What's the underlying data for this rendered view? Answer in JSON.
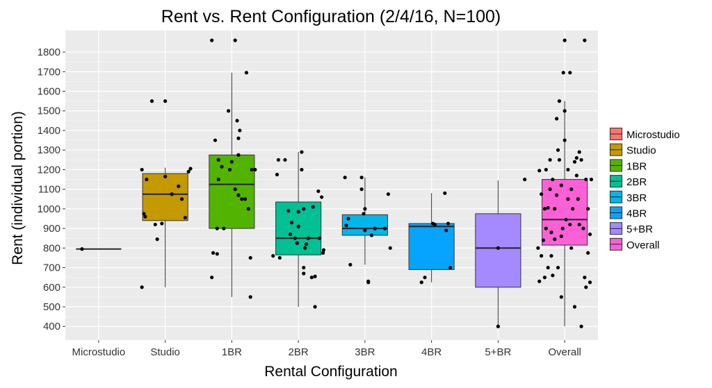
{
  "chart_data": {
    "type": "box",
    "title": "Rent vs. Rent Configuration (2/4/16, N=100)",
    "xlabel": "Rental Configuration",
    "ylabel": "Rent (individual portion)",
    "categories": [
      "Microstudio",
      "Studio",
      "1BR",
      "2BR",
      "3BR",
      "4BR",
      "5+BR",
      "Overall"
    ],
    "colors": [
      "#F8766D",
      "#C49A00",
      "#53B400",
      "#00C094",
      "#00B6EB",
      "#06A4FF",
      "#A58AFF",
      "#FB61D7"
    ],
    "yticks": [
      400,
      500,
      600,
      700,
      800,
      900,
      1000,
      1100,
      1200,
      1300,
      1400,
      1500,
      1600,
      1700,
      1800
    ],
    "ylim": [
      330,
      1910
    ],
    "legend_position": "right",
    "grid": true,
    "boxes": [
      {
        "name": "Microstudio",
        "min": 795,
        "q1": 795,
        "median": 795,
        "q3": 795,
        "max": 795
      },
      {
        "name": "Studio",
        "min": 600,
        "q1": 940,
        "median": 1075,
        "q3": 1180,
        "max": 1210
      },
      {
        "name": "1BR",
        "min": 550,
        "q1": 900,
        "median": 1125,
        "q3": 1275,
        "max": 1695
      },
      {
        "name": "2BR",
        "min": 500,
        "q1": 765,
        "median": 850,
        "q3": 1035,
        "max": 1290
      },
      {
        "name": "3BR",
        "min": 715,
        "q1": 865,
        "median": 900,
        "q3": 970,
        "max": 1160
      },
      {
        "name": "4BR",
        "min": 625,
        "q1": 690,
        "median": 910,
        "q3": 925,
        "max": 1080
      },
      {
        "name": "5+BR",
        "min": 400,
        "q1": 600,
        "median": 800,
        "q3": 975,
        "max": 1145
      },
      {
        "name": "Overall",
        "min": 400,
        "q1": 815,
        "median": 945,
        "q3": 1150,
        "max": 1550
      }
    ],
    "points": [
      {
        "cat": 0,
        "dx": -0.25,
        "y": 795
      },
      {
        "cat": 1,
        "dx": -0.35,
        "y": 600
      },
      {
        "cat": 1,
        "dx": -0.3,
        "y": 960
      },
      {
        "cat": 1,
        "dx": -0.35,
        "y": 1200
      },
      {
        "cat": 1,
        "dx": -0.2,
        "y": 1550
      },
      {
        "cat": 1,
        "dx": -0.15,
        "y": 920
      },
      {
        "cat": 1,
        "dx": -0.12,
        "y": 845
      },
      {
        "cat": 1,
        "dx": -0.05,
        "y": 925
      },
      {
        "cat": 1,
        "dx": 0.0,
        "y": 1550
      },
      {
        "cat": 1,
        "dx": 0.0,
        "y": 1165
      },
      {
        "cat": 1,
        "dx": 0.1,
        "y": 1075
      },
      {
        "cat": 1,
        "dx": 0.2,
        "y": 1115
      },
      {
        "cat": 1,
        "dx": 0.25,
        "y": 1050
      },
      {
        "cat": 1,
        "dx": 0.3,
        "y": 955
      },
      {
        "cat": 1,
        "dx": 0.35,
        "y": 1190
      },
      {
        "cat": 1,
        "dx": 0.38,
        "y": 1205
      },
      {
        "cat": 1,
        "dx": -0.32,
        "y": 975
      },
      {
        "cat": 1,
        "dx": -0.28,
        "y": 1150
      },
      {
        "cat": 1,
        "dx": 0.1,
        "y": 1075
      },
      {
        "cat": 2,
        "dx": -0.3,
        "y": 1860
      },
      {
        "cat": 2,
        "dx": -0.3,
        "y": 650
      },
      {
        "cat": 2,
        "dx": -0.28,
        "y": 775
      },
      {
        "cat": 2,
        "dx": -0.22,
        "y": 770
      },
      {
        "cat": 2,
        "dx": -0.25,
        "y": 1350
      },
      {
        "cat": 2,
        "dx": -0.2,
        "y": 1250
      },
      {
        "cat": 2,
        "dx": -0.15,
        "y": 1215
      },
      {
        "cat": 2,
        "dx": -0.22,
        "y": 900
      },
      {
        "cat": 2,
        "dx": -0.12,
        "y": 900
      },
      {
        "cat": 2,
        "dx": -0.2,
        "y": 1150
      },
      {
        "cat": 2,
        "dx": -0.05,
        "y": 1500
      },
      {
        "cat": 2,
        "dx": -0.03,
        "y": 1200
      },
      {
        "cat": 2,
        "dx": 0.0,
        "y": 1240
      },
      {
        "cat": 2,
        "dx": 0.05,
        "y": 1100
      },
      {
        "cat": 2,
        "dx": 0.05,
        "y": 1860
      },
      {
        "cat": 2,
        "dx": 0.08,
        "y": 1450
      },
      {
        "cat": 2,
        "dx": 0.1,
        "y": 1360
      },
      {
        "cat": 2,
        "dx": 0.12,
        "y": 1400
      },
      {
        "cat": 2,
        "dx": 0.1,
        "y": 1275
      },
      {
        "cat": 2,
        "dx": 0.1,
        "y": 1070
      },
      {
        "cat": 2,
        "dx": 0.15,
        "y": 1050
      },
      {
        "cat": 2,
        "dx": 0.2,
        "y": 1050
      },
      {
        "cat": 2,
        "dx": 0.22,
        "y": 1695
      },
      {
        "cat": 2,
        "dx": 0.25,
        "y": 1000
      },
      {
        "cat": 2,
        "dx": 0.3,
        "y": 1200
      },
      {
        "cat": 2,
        "dx": 0.35,
        "y": 1200
      },
      {
        "cat": 2,
        "dx": 0.28,
        "y": 750
      },
      {
        "cat": 2,
        "dx": 0.28,
        "y": 550
      },
      {
        "cat": 3,
        "dx": -0.38,
        "y": 760
      },
      {
        "cat": 3,
        "dx": -0.32,
        "y": 1175
      },
      {
        "cat": 3,
        "dx": -0.3,
        "y": 1250
      },
      {
        "cat": 3,
        "dx": -0.28,
        "y": 750
      },
      {
        "cat": 3,
        "dx": -0.2,
        "y": 1250
      },
      {
        "cat": 3,
        "dx": -0.15,
        "y": 990
      },
      {
        "cat": 3,
        "dx": -0.12,
        "y": 870
      },
      {
        "cat": 3,
        "dx": -0.1,
        "y": 930
      },
      {
        "cat": 3,
        "dx": -0.05,
        "y": 850
      },
      {
        "cat": 3,
        "dx": -0.02,
        "y": 825
      },
      {
        "cat": 3,
        "dx": 0.0,
        "y": 985
      },
      {
        "cat": 3,
        "dx": 0.05,
        "y": 1290
      },
      {
        "cat": 3,
        "dx": 0.05,
        "y": 1200
      },
      {
        "cat": 3,
        "dx": 0.08,
        "y": 1000
      },
      {
        "cat": 3,
        "dx": 0.08,
        "y": 700
      },
      {
        "cat": 3,
        "dx": 0.08,
        "y": 670
      },
      {
        "cat": 3,
        "dx": 0.1,
        "y": 800
      },
      {
        "cat": 3,
        "dx": 0.12,
        "y": 820
      },
      {
        "cat": 3,
        "dx": 0.15,
        "y": 850
      },
      {
        "cat": 3,
        "dx": 0.2,
        "y": 650
      },
      {
        "cat": 3,
        "dx": 0.22,
        "y": 1010
      },
      {
        "cat": 3,
        "dx": 0.25,
        "y": 655
      },
      {
        "cat": 3,
        "dx": 0.25,
        "y": 500
      },
      {
        "cat": 3,
        "dx": 0.3,
        "y": 1090
      },
      {
        "cat": 3,
        "dx": 0.35,
        "y": 1060
      },
      {
        "cat": 3,
        "dx": 0.37,
        "y": 775
      },
      {
        "cat": 3,
        "dx": 0.38,
        "y": 790
      },
      {
        "cat": 3,
        "dx": 0.32,
        "y": 850
      },
      {
        "cat": 3,
        "dx": 0.0,
        "y": 910
      },
      {
        "cat": 4,
        "dx": -0.3,
        "y": 1160
      },
      {
        "cat": 4,
        "dx": -0.28,
        "y": 915
      },
      {
        "cat": 4,
        "dx": -0.25,
        "y": 950
      },
      {
        "cat": 4,
        "dx": -0.22,
        "y": 715
      },
      {
        "cat": 4,
        "dx": -0.05,
        "y": 1160
      },
      {
        "cat": 4,
        "dx": -0.05,
        "y": 1100
      },
      {
        "cat": 4,
        "dx": -0.02,
        "y": 975
      },
      {
        "cat": 4,
        "dx": 0.0,
        "y": 1000
      },
      {
        "cat": 4,
        "dx": 0.0,
        "y": 890
      },
      {
        "cat": 4,
        "dx": 0.05,
        "y": 630
      },
      {
        "cat": 4,
        "dx": 0.05,
        "y": 625
      },
      {
        "cat": 4,
        "dx": 0.1,
        "y": 865
      },
      {
        "cat": 4,
        "dx": 0.15,
        "y": 900
      },
      {
        "cat": 4,
        "dx": 0.3,
        "y": 900
      },
      {
        "cat": 4,
        "dx": 0.35,
        "y": 1075
      },
      {
        "cat": 4,
        "dx": 0.38,
        "y": 800
      },
      {
        "cat": 5,
        "dx": -0.15,
        "y": 625
      },
      {
        "cat": 5,
        "dx": -0.1,
        "y": 650
      },
      {
        "cat": 5,
        "dx": 0.02,
        "y": 925
      },
      {
        "cat": 5,
        "dx": 0.05,
        "y": 920
      },
      {
        "cat": 5,
        "dx": 0.2,
        "y": 1080
      },
      {
        "cat": 5,
        "dx": 0.22,
        "y": 890
      },
      {
        "cat": 5,
        "dx": 0.25,
        "y": 925
      },
      {
        "cat": 5,
        "dx": 0.28,
        "y": 700
      },
      {
        "cat": 6,
        "dx": 0.0,
        "y": 800
      },
      {
        "cat": 6,
        "dx": 0.0,
        "y": 400
      },
      {
        "cat": 6,
        "dx": 0.4,
        "y": 1150
      },
      {
        "cat": 7,
        "dx": -0.38,
        "y": 1195
      },
      {
        "cat": 7,
        "dx": -0.35,
        "y": 1075
      },
      {
        "cat": 7,
        "dx": -0.38,
        "y": 630
      },
      {
        "cat": 7,
        "dx": -0.35,
        "y": 760
      },
      {
        "cat": 7,
        "dx": -0.32,
        "y": 840
      },
      {
        "cat": 7,
        "dx": -0.3,
        "y": 650
      },
      {
        "cat": 7,
        "dx": -0.3,
        "y": 1000
      },
      {
        "cat": 7,
        "dx": -0.28,
        "y": 1200
      },
      {
        "cat": 7,
        "dx": -0.28,
        "y": 900
      },
      {
        "cat": 7,
        "dx": -0.25,
        "y": 1005
      },
      {
        "cat": 7,
        "dx": -0.25,
        "y": 700
      },
      {
        "cat": 7,
        "dx": -0.22,
        "y": 1250
      },
      {
        "cat": 7,
        "dx": -0.22,
        "y": 1100
      },
      {
        "cat": 7,
        "dx": -0.2,
        "y": 880
      },
      {
        "cat": 7,
        "dx": -0.2,
        "y": 760
      },
      {
        "cat": 7,
        "dx": -0.18,
        "y": 660
      },
      {
        "cat": 7,
        "dx": -0.18,
        "y": 1150
      },
      {
        "cat": 7,
        "dx": -0.15,
        "y": 1000
      },
      {
        "cat": 7,
        "dx": -0.15,
        "y": 845
      },
      {
        "cat": 7,
        "dx": -0.12,
        "y": 1460
      },
      {
        "cat": 7,
        "dx": -0.12,
        "y": 1070
      },
      {
        "cat": 7,
        "dx": -0.1,
        "y": 1300
      },
      {
        "cat": 7,
        "dx": -0.1,
        "y": 700
      },
      {
        "cat": 7,
        "dx": -0.08,
        "y": 1550
      },
      {
        "cat": 7,
        "dx": -0.08,
        "y": 1250
      },
      {
        "cat": 7,
        "dx": -0.05,
        "y": 1120
      },
      {
        "cat": 7,
        "dx": -0.05,
        "y": 860
      },
      {
        "cat": 7,
        "dx": -0.03,
        "y": 900
      },
      {
        "cat": 7,
        "dx": -0.02,
        "y": 1695
      },
      {
        "cat": 7,
        "dx": 0.0,
        "y": 1860
      },
      {
        "cat": 7,
        "dx": 0.0,
        "y": 1500
      },
      {
        "cat": 7,
        "dx": 0.0,
        "y": 1350
      },
      {
        "cat": 7,
        "dx": 0.02,
        "y": 945
      },
      {
        "cat": 7,
        "dx": 0.05,
        "y": 1200
      },
      {
        "cat": 7,
        "dx": 0.05,
        "y": 1050
      },
      {
        "cat": 7,
        "dx": 0.08,
        "y": 920
      },
      {
        "cat": 7,
        "dx": 0.08,
        "y": 1695
      },
      {
        "cat": 7,
        "dx": 0.1,
        "y": 1100
      },
      {
        "cat": 7,
        "dx": 0.1,
        "y": 800
      },
      {
        "cat": 7,
        "dx": 0.12,
        "y": 1000
      },
      {
        "cat": 7,
        "dx": 0.15,
        "y": 1240
      },
      {
        "cat": 7,
        "dx": 0.15,
        "y": 500
      },
      {
        "cat": 7,
        "dx": 0.18,
        "y": 1170
      },
      {
        "cat": 7,
        "dx": 0.2,
        "y": 1050
      },
      {
        "cat": 7,
        "dx": 0.22,
        "y": 920
      },
      {
        "cat": 7,
        "dx": 0.22,
        "y": 1290
      },
      {
        "cat": 7,
        "dx": 0.25,
        "y": 400
      },
      {
        "cat": 7,
        "dx": 0.25,
        "y": 1250
      },
      {
        "cat": 7,
        "dx": 0.28,
        "y": 900
      },
      {
        "cat": 7,
        "dx": 0.3,
        "y": 1860
      },
      {
        "cat": 7,
        "dx": 0.3,
        "y": 650
      },
      {
        "cat": 7,
        "dx": 0.32,
        "y": 1150
      },
      {
        "cat": 7,
        "dx": 0.32,
        "y": 600
      },
      {
        "cat": 7,
        "dx": 0.35,
        "y": 1000
      },
      {
        "cat": 7,
        "dx": 0.35,
        "y": 775
      },
      {
        "cat": 7,
        "dx": 0.38,
        "y": 625
      },
      {
        "cat": 7,
        "dx": 0.38,
        "y": 870
      },
      {
        "cat": 7,
        "dx": 0.4,
        "y": 1150
      },
      {
        "cat": 7,
        "dx": -0.4,
        "y": 800
      },
      {
        "cat": 7,
        "dx": 0.18,
        "y": 1260
      },
      {
        "cat": 7,
        "dx": -0.05,
        "y": 550
      }
    ]
  }
}
